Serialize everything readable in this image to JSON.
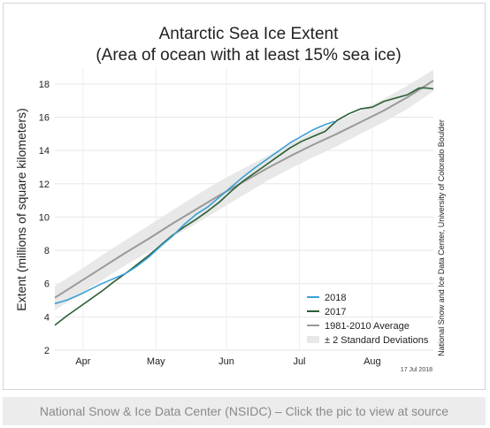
{
  "caption": "National Snow & Ice Data Center (NSIDC) – Click the pic to view at source",
  "chart_data": {
    "type": "line",
    "title": "Antarctic Sea Ice Extent",
    "subtitle": "(Area of ocean with at least 15% sea ice)",
    "xlabel": "",
    "ylabel": "Extent (millions of square kilometers)",
    "x_ticks": [
      "Apr",
      "May",
      "Jun",
      "Jul",
      "Aug"
    ],
    "y_ticks": [
      "2",
      "4",
      "6",
      "8",
      "10",
      "12",
      "14",
      "16",
      "18"
    ],
    "ylim": [
      2,
      19
    ],
    "xlim_days": [
      0,
      161
    ],
    "x_unit": "days since 2018-03-20",
    "grid": true,
    "legend_position": "bottom-right",
    "credit": "National Snow and Ice Data Center, University of Colorado Boulder",
    "date_stamp": "17 Jul 2018",
    "colors": {
      "2018": "#3a9fd6",
      "2017": "#2a5e35",
      "average": "#9a9a9a",
      "band": "#e8e8e8"
    },
    "series": [
      {
        "name": "2018",
        "x": [
          0,
          5,
          10,
          15,
          20,
          25,
          30,
          35,
          40,
          45,
          50,
          55,
          60,
          65,
          70,
          75,
          80,
          85,
          90,
          95,
          100,
          105,
          110,
          115,
          119
        ],
        "y": [
          4.8,
          5.0,
          5.3,
          5.65,
          6.0,
          6.3,
          6.6,
          7.05,
          7.6,
          8.25,
          8.85,
          9.55,
          10.15,
          10.6,
          11.2,
          11.8,
          12.4,
          12.95,
          13.45,
          13.95,
          14.45,
          14.85,
          15.25,
          15.55,
          15.75
        ]
      },
      {
        "name": "2017",
        "x": [
          0,
          5,
          10,
          15,
          20,
          25,
          30,
          35,
          40,
          45,
          50,
          55,
          60,
          65,
          70,
          75,
          80,
          85,
          90,
          95,
          100,
          105,
          110,
          115,
          120,
          125,
          130,
          135,
          140,
          145,
          150,
          155,
          158,
          161
        ],
        "y": [
          3.5,
          4.05,
          4.55,
          5.05,
          5.55,
          6.1,
          6.6,
          7.15,
          7.7,
          8.3,
          8.9,
          9.4,
          9.85,
          10.35,
          10.9,
          11.55,
          12.15,
          12.65,
          13.15,
          13.65,
          14.15,
          14.55,
          14.85,
          15.15,
          15.8,
          16.2,
          16.5,
          16.6,
          16.95,
          17.15,
          17.35,
          17.75,
          17.75,
          17.7
        ]
      },
      {
        "name": "1981-2010 Average",
        "x": [
          0,
          10,
          20,
          30,
          40,
          50,
          60,
          70,
          80,
          90,
          100,
          110,
          120,
          130,
          140,
          150,
          161
        ],
        "y": [
          5.15,
          6.05,
          6.95,
          7.85,
          8.7,
          9.6,
          10.45,
          11.3,
          12.1,
          12.9,
          13.65,
          14.35,
          15.0,
          15.7,
          16.4,
          17.2,
          18.2
        ]
      }
    ],
    "band": {
      "name": "± 2 Standard Deviations",
      "x": [
        0,
        10,
        20,
        30,
        40,
        50,
        60,
        70,
        80,
        90,
        100,
        110,
        120,
        130,
        140,
        150,
        161
      ],
      "upper": [
        5.85,
        6.75,
        7.7,
        8.6,
        9.5,
        10.4,
        11.3,
        12.15,
        12.9,
        13.65,
        14.4,
        15.1,
        15.75,
        16.4,
        17.1,
        17.9,
        18.85
      ],
      "lower": [
        4.4,
        5.3,
        6.2,
        7.1,
        7.9,
        8.8,
        9.6,
        10.45,
        11.3,
        12.15,
        12.9,
        13.6,
        14.25,
        15.0,
        15.7,
        16.5,
        17.55
      ]
    },
    "x_tick_days": [
      12,
      43,
      73,
      104,
      135
    ]
  }
}
